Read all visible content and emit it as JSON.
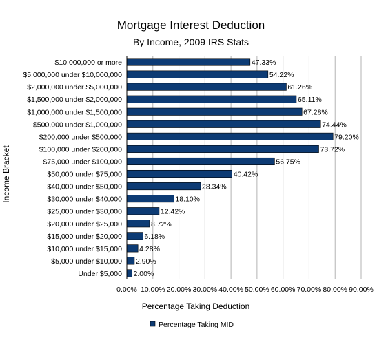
{
  "chart_data": {
    "type": "bar",
    "orientation": "horizontal",
    "title": "Mortgage Interest Deduction",
    "subtitle": "By Income, 2009 IRS Stats",
    "xlabel": "Percentage Taking Deduction",
    "ylabel": "Income Bracket",
    "xlim": [
      0,
      90
    ],
    "x_ticks": [
      "0.00%",
      "10.00%",
      "20.00%",
      "30.00%",
      "40.00%",
      "50.00%",
      "60.00%",
      "70.00%",
      "80.00%",
      "90.00%"
    ],
    "grid": "vertical",
    "legend_position": "bottom",
    "bar_color": "#0d3b74",
    "categories": [
      "$10,000,000 or more",
      "$5,000,000 under $10,000,000",
      "$2,000,000 under $5,000,000",
      "$1,500,000 under $2,000,000",
      "$1,000,000 under $1,500,000",
      "$500,000 under $1,000,000",
      "$200,000 under $500,000",
      "$100,000 under $200,000",
      "$75,000 under $100,000",
      "$50,000 under $75,000",
      "$40,000 under $50,000",
      "$30,000 under $40,000",
      "$25,000 under $30,000",
      "$20,000 under $25,000",
      "$15,000 under $20,000",
      "$10,000 under $15,000",
      "$5,000 under $10,000",
      "Under $5,000"
    ],
    "series": [
      {
        "name": "Percentage Taking MID",
        "values": [
          47.33,
          54.22,
          61.26,
          65.11,
          67.28,
          74.44,
          79.2,
          73.72,
          56.75,
          40.42,
          28.34,
          18.1,
          12.42,
          8.72,
          6.18,
          4.28,
          2.9,
          2.0
        ],
        "labels": [
          "47.33%",
          "54.22%",
          "61.26%",
          "65.11%",
          "67.28%",
          "74.44%",
          "79.20%",
          "73.72%",
          "56.75%",
          "40.42%",
          "28.34%",
          "18.10%",
          "12.42%",
          "8.72%",
          "6.18%",
          "4.28%",
          "2.90%",
          "2.00%"
        ]
      }
    ]
  }
}
